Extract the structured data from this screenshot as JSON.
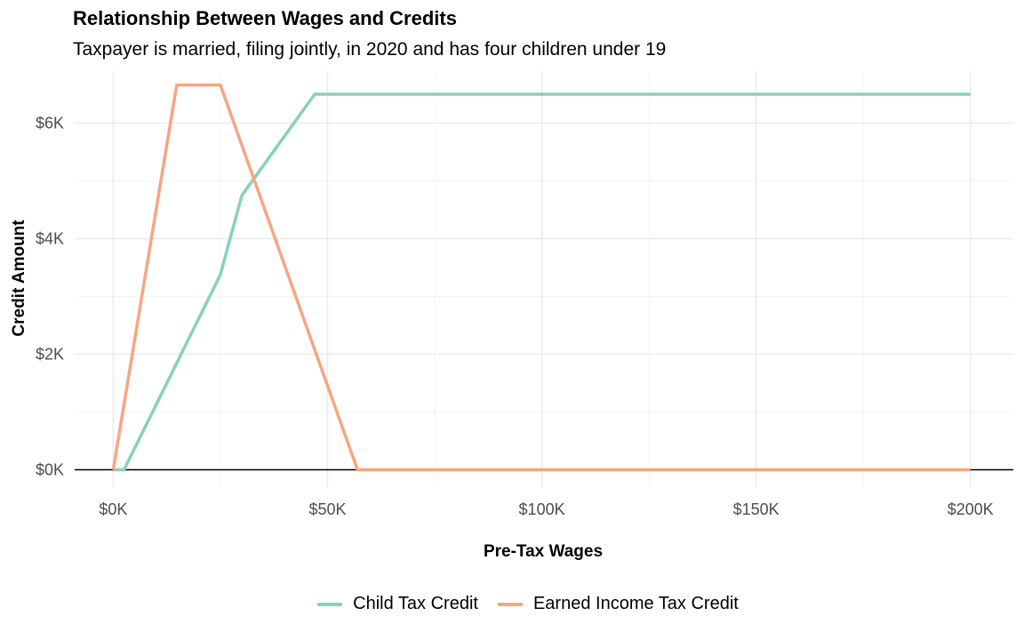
{
  "chart_data": {
    "type": "line",
    "title": "Relationship Between Wages and Credits",
    "subtitle": "Taxpayer is married, filing jointly, in 2020 and has four children under 19",
    "xlabel": "Pre-Tax Wages",
    "ylabel": "Credit Amount",
    "xlim": [
      -9000,
      210000
    ],
    "ylim": [
      -300,
      6900
    ],
    "x_ticks": [
      0,
      50000,
      100000,
      150000,
      200000
    ],
    "x_tick_labels": [
      "$0K",
      "$50K",
      "$100K",
      "$150K",
      "$200K"
    ],
    "y_ticks": [
      0,
      2000,
      4000,
      6000
    ],
    "y_tick_labels": [
      "$0K",
      "$2K",
      "$4K",
      "$6K"
    ],
    "grid": true,
    "legend_position": "bottom",
    "series": [
      {
        "name": "Child Tax Credit",
        "color": "#88d1b8",
        "points": [
          [
            0,
            0
          ],
          [
            2500,
            0
          ],
          [
            25000,
            3375
          ],
          [
            30000,
            4750
          ],
          [
            47000,
            6500
          ],
          [
            200000,
            6500
          ]
        ]
      },
      {
        "name": "Earned Income Tax Credit",
        "color": "#f7a582",
        "points": [
          [
            0,
            0
          ],
          [
            14800,
            6660
          ],
          [
            25000,
            6660
          ],
          [
            57000,
            0
          ],
          [
            200000,
            0
          ]
        ]
      }
    ]
  }
}
